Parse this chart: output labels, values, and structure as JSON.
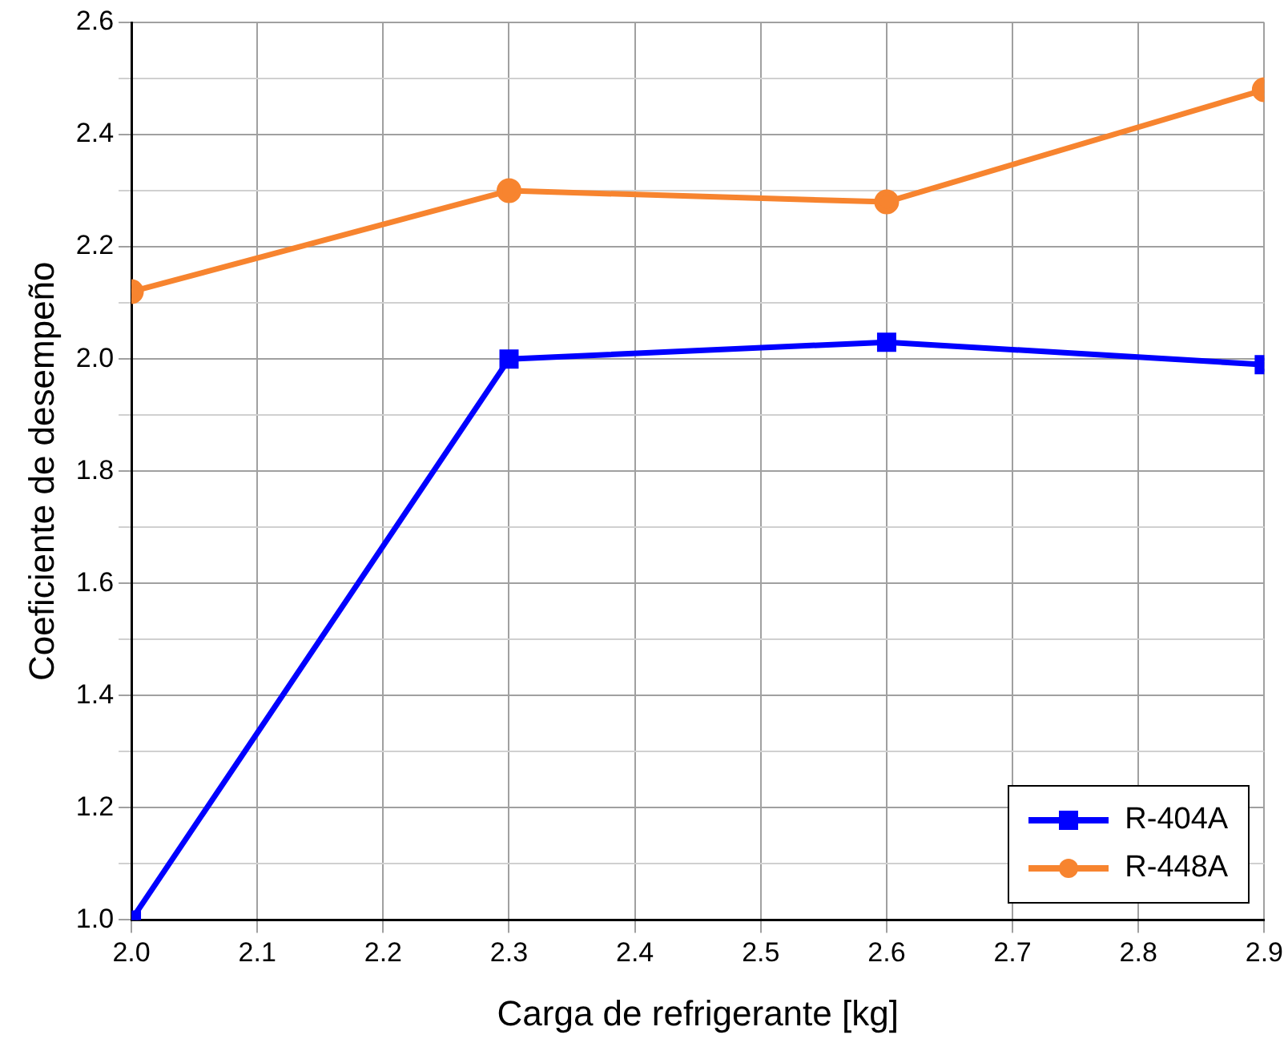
{
  "chart_data": {
    "type": "line",
    "xlabel": "Carga de refrigerante [kg]",
    "ylabel": "Coeficiente de desempeño",
    "x": [
      2.0,
      2.3,
      2.6,
      2.9
    ],
    "series": [
      {
        "name": "R-404A",
        "color": "#0000ff",
        "marker": "square",
        "values": [
          1.0,
          2.0,
          2.03,
          1.99
        ]
      },
      {
        "name": "R-448A",
        "color": "#f7842f",
        "marker": "circle",
        "values": [
          2.12,
          2.3,
          2.28,
          2.48
        ]
      }
    ],
    "xlim": [
      2.0,
      2.9
    ],
    "xticks": [
      {
        "value": 2.0,
        "label": "2.0"
      },
      2.1,
      2.2,
      2.3,
      2.4,
      2.5,
      2.6,
      2.7,
      2.8,
      2.9
    ],
    "ylim": [
      1.0,
      2.6
    ],
    "yticks": [
      {
        "value": 1.0,
        "label": "1.0"
      },
      {
        "value": 1.1,
        "label": null
      },
      1.2,
      {
        "value": 1.3,
        "label": null
      },
      1.4,
      {
        "value": 1.5,
        "label": null
      },
      1.6,
      {
        "value": 1.7,
        "label": null
      },
      1.8,
      {
        "value": 1.9,
        "label": null
      },
      {
        "value": 2.0,
        "label": "2.0"
      },
      {
        "value": 2.1,
        "label": null
      },
      2.2,
      {
        "value": 2.3,
        "label": null
      },
      2.4,
      {
        "value": 2.5,
        "label": null
      },
      2.6
    ],
    "grid": true,
    "legend": "bottom right",
    "line_style": "solid"
  }
}
